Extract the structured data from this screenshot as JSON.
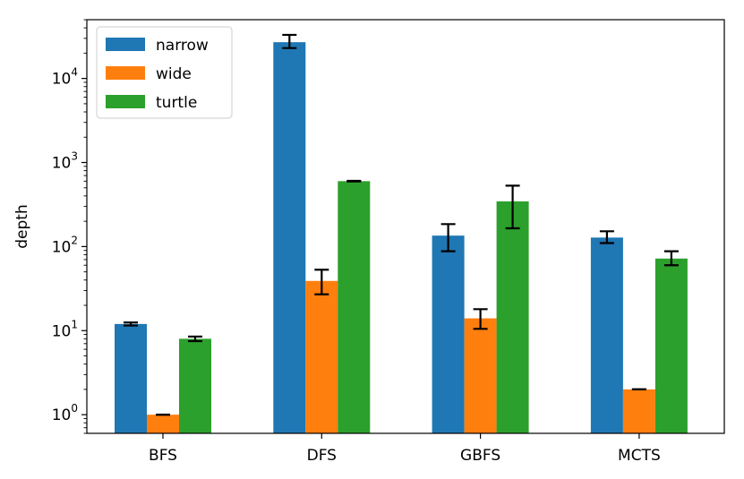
{
  "chart_data": {
    "type": "bar",
    "scale": "log",
    "title": "",
    "xlabel": "",
    "ylabel": "depth",
    "ylim": [
      0.6,
      50000
    ],
    "categories": [
      "BFS",
      "DFS",
      "GBFS",
      "MCTS"
    ],
    "yticks": [
      {
        "value": 1,
        "base": "10",
        "exp": "0"
      },
      {
        "value": 10,
        "base": "10",
        "exp": "1"
      },
      {
        "value": 100,
        "base": "10",
        "exp": "2"
      },
      {
        "value": 1000,
        "base": "10",
        "exp": "3"
      },
      {
        "value": 10000,
        "base": "10",
        "exp": "4"
      }
    ],
    "series": [
      {
        "name": "narrow",
        "color": "#1f77b4",
        "values": [
          12,
          27000,
          135,
          128
        ],
        "err_low": [
          11.5,
          23000,
          88,
          110
        ],
        "err_high": [
          12.5,
          33000,
          185,
          152
        ]
      },
      {
        "name": "wide",
        "color": "#ff7f0e",
        "values": [
          1,
          39,
          14,
          2
        ],
        "err_low": [
          1,
          27,
          10.5,
          2
        ],
        "err_high": [
          1,
          53,
          18,
          2
        ]
      },
      {
        "name": "turtle",
        "color": "#2ca02c",
        "values": [
          8,
          600,
          345,
          72
        ],
        "err_low": [
          7.5,
          595,
          165,
          60
        ],
        "err_high": [
          8.5,
          605,
          530,
          88
        ]
      }
    ],
    "legend": {
      "position": "top-left"
    }
  }
}
